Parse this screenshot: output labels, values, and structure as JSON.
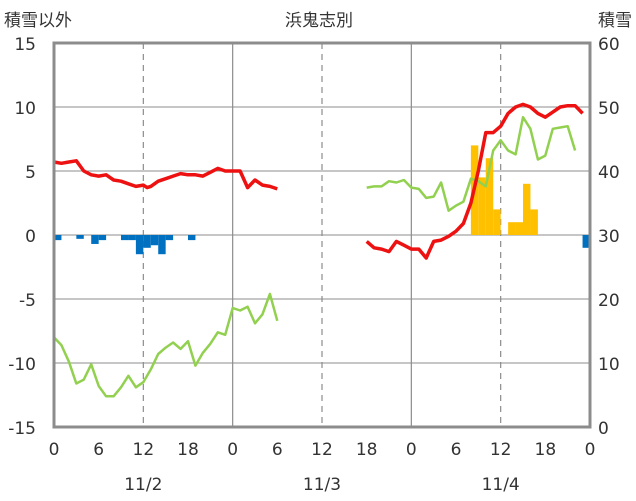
{
  "chart_data": {
    "type": "line",
    "title": "浜鬼志別",
    "left_axis_label": "積雪以外",
    "right_axis_label": "積雪",
    "left_ylim": [
      -15,
      15
    ],
    "left_yticks": [
      "15",
      "10",
      "5",
      "0",
      "-5",
      "-10",
      "-15"
    ],
    "right_ylim": [
      0,
      60
    ],
    "right_yticks": [
      "60",
      "50",
      "40",
      "30",
      "20",
      "10",
      "0"
    ],
    "x_hours_range": [
      0,
      72
    ],
    "x_tick_labels": [
      "0",
      "6",
      "12",
      "18",
      "0",
      "6",
      "12",
      "18",
      "0",
      "6",
      "12",
      "18",
      "0"
    ],
    "date_labels": [
      "11/2",
      "11/3",
      "11/4"
    ],
    "grid": true,
    "colors": {
      "temp_red": "#ee1111",
      "temp_green": "#92d050",
      "precip_blue": "#0070c0",
      "snowfall_orange": "#ffc000",
      "snow_depth_purple": "#7030a0",
      "frame": "#8c8c8c",
      "grid": "#8c8c8c"
    },
    "series": [
      {
        "key": "red",
        "axis": "left",
        "points": [
          [
            0,
            5.7
          ],
          [
            1,
            5.6
          ],
          [
            2,
            5.7
          ],
          [
            3,
            5.8
          ],
          [
            4,
            5.0
          ],
          [
            5,
            4.7
          ],
          [
            6,
            4.6
          ],
          [
            7,
            4.7
          ],
          [
            8,
            4.3
          ],
          [
            9,
            4.2
          ],
          [
            10,
            4.0
          ],
          [
            11,
            3.8
          ],
          [
            12,
            3.9
          ],
          [
            12.5,
            3.7
          ],
          [
            13,
            3.8
          ],
          [
            14,
            4.2
          ],
          [
            15,
            4.4
          ],
          [
            16,
            4.6
          ],
          [
            17,
            4.8
          ],
          [
            18,
            4.7
          ],
          [
            19,
            4.7
          ],
          [
            20,
            4.6
          ],
          [
            21,
            4.9
          ],
          [
            22,
            5.2
          ],
          [
            23,
            5.0
          ],
          [
            24,
            5.0
          ],
          [
            25,
            5.0
          ],
          [
            26,
            3.7
          ],
          [
            27,
            4.3
          ],
          [
            28,
            3.9
          ],
          [
            29,
            3.8
          ],
          [
            30,
            3.6
          ]
        ],
        "points_b": [
          [
            42,
            -0.5
          ],
          [
            43,
            -1.0
          ],
          [
            44,
            -1.1
          ],
          [
            45,
            -1.3
          ],
          [
            46,
            -0.5
          ],
          [
            47,
            -0.8
          ],
          [
            48,
            -1.1
          ],
          [
            49,
            -1.1
          ],
          [
            50,
            -1.8
          ],
          [
            51,
            -0.5
          ],
          [
            52,
            -0.4
          ],
          [
            53,
            -0.1
          ],
          [
            54,
            0.3
          ],
          [
            55,
            0.9
          ],
          [
            56,
            2.5
          ],
          [
            57,
            5.0
          ],
          [
            58,
            8.0
          ],
          [
            59,
            8.0
          ],
          [
            60,
            8.5
          ],
          [
            61,
            9.5
          ],
          [
            62,
            10.0
          ],
          [
            63,
            10.2
          ],
          [
            64,
            10.0
          ],
          [
            65,
            9.5
          ],
          [
            66,
            9.2
          ],
          [
            67,
            9.6
          ],
          [
            68,
            10.0
          ],
          [
            69,
            10.1
          ],
          [
            70,
            10.1
          ],
          [
            71,
            9.5
          ]
        ]
      },
      {
        "key": "green",
        "axis": "left",
        "points": [
          [
            0,
            -8.0
          ],
          [
            1,
            -8.6
          ],
          [
            2,
            -9.9
          ],
          [
            3,
            -11.6
          ],
          [
            4,
            -11.3
          ],
          [
            5,
            -10.1
          ],
          [
            6,
            -11.8
          ],
          [
            7,
            -12.6
          ],
          [
            8,
            -12.6
          ],
          [
            9,
            -11.9
          ],
          [
            10,
            -11.0
          ],
          [
            11,
            -11.9
          ],
          [
            12,
            -11.5
          ],
          [
            13,
            -10.5
          ],
          [
            14,
            -9.3
          ],
          [
            15,
            -8.8
          ],
          [
            16,
            -8.4
          ],
          [
            17,
            -8.9
          ],
          [
            18,
            -8.3
          ],
          [
            19,
            -10.2
          ],
          [
            20,
            -9.2
          ],
          [
            21,
            -8.5
          ],
          [
            22,
            -7.6
          ],
          [
            23,
            -7.8
          ],
          [
            24,
            -5.7
          ],
          [
            25,
            -5.9
          ],
          [
            26,
            -5.6
          ],
          [
            27,
            -6.9
          ],
          [
            28,
            -6.2
          ],
          [
            29,
            -4.6
          ],
          [
            30,
            -6.7
          ]
        ],
        "points_b": [
          [
            42,
            3.7
          ],
          [
            43,
            3.8
          ],
          [
            44,
            3.8
          ],
          [
            45,
            4.2
          ],
          [
            46,
            4.1
          ],
          [
            47,
            4.3
          ],
          [
            48,
            3.7
          ],
          [
            49,
            3.6
          ],
          [
            50,
            2.9
          ],
          [
            51,
            3.0
          ],
          [
            52,
            4.1
          ],
          [
            53,
            1.9
          ],
          [
            54,
            2.3
          ],
          [
            55,
            2.6
          ],
          [
            56,
            4.4
          ],
          [
            57,
            4.2
          ],
          [
            58,
            3.8
          ],
          [
            59,
            6.6
          ],
          [
            60,
            7.4
          ],
          [
            61,
            6.6
          ],
          [
            62,
            6.3
          ],
          [
            63,
            9.2
          ],
          [
            64,
            8.3
          ],
          [
            65,
            5.9
          ],
          [
            66,
            6.2
          ],
          [
            67,
            8.3
          ],
          [
            68,
            8.4
          ],
          [
            69,
            8.5
          ],
          [
            70,
            6.6
          ]
        ]
      }
    ],
    "precip_bars": [
      [
        0,
        -0.4
      ],
      [
        3,
        -0.3
      ],
      [
        5,
        -0.7
      ],
      [
        6,
        -0.4
      ],
      [
        9,
        -0.4
      ],
      [
        10,
        -0.4
      ],
      [
        11,
        -1.5
      ],
      [
        12,
        -1.0
      ],
      [
        13,
        -0.8
      ],
      [
        14,
        -1.5
      ],
      [
        15,
        -0.4
      ],
      [
        18,
        -0.4
      ],
      [
        71,
        -1.0
      ]
    ],
    "snowfall_bars": [
      [
        56,
        7.0
      ],
      [
        57,
        4.5
      ],
      [
        58,
        6.0
      ],
      [
        59,
        2.0
      ],
      [
        61,
        1.0
      ],
      [
        62,
        1.0
      ],
      [
        63,
        4.0
      ],
      [
        64,
        2.0
      ]
    ],
    "snow_depth": [
      [
        60,
        0.0
      ],
      [
        72,
        0.0
      ]
    ]
  }
}
